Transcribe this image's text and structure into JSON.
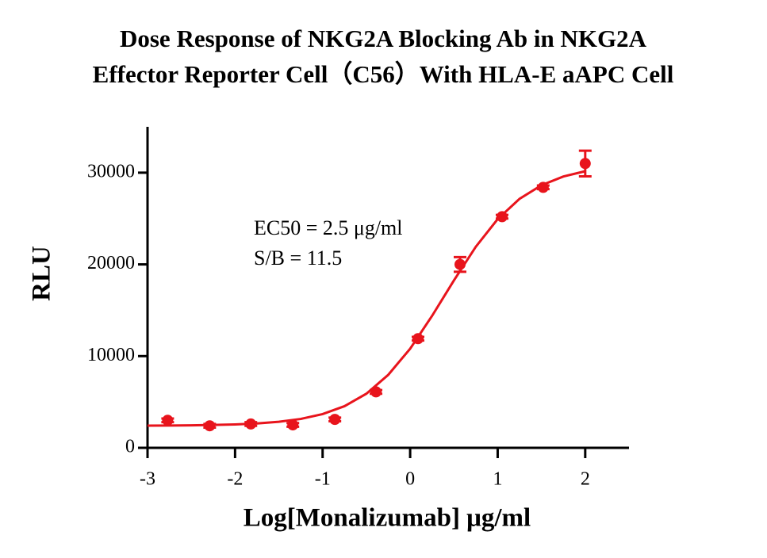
{
  "chart_data": {
    "type": "scatter",
    "title": [
      "Dose Response of NKG2A Blocking Ab in NKG2A",
      "Effector Reporter Cell（C56）With HLA-E aAPC Cell"
    ],
    "x_label": "Log[Monalizumab] μg/ml",
    "y_label": "RLU",
    "annotations": [
      "EC50 = 2.5 μg/ml",
      "S/B = 11.5"
    ],
    "xlim": [
      -3,
      2.5
    ],
    "ylim": [
      0,
      35000
    ],
    "xticks": [
      -3,
      -2,
      -1,
      0,
      1,
      2
    ],
    "yticks": [
      0,
      10000,
      20000,
      30000
    ],
    "grid": false,
    "series": [
      {
        "type": "scatter",
        "color": "#e8141c",
        "x": [
          -2.77,
          -2.29,
          -1.82,
          -1.34,
          -0.86,
          -0.39,
          0.09,
          0.57,
          1.05,
          1.52,
          2.0
        ],
        "values": [
          3000,
          2400,
          2600,
          2500,
          3100,
          6100,
          11900,
          20000,
          25200,
          28400,
          31000
        ],
        "errors": [
          200,
          200,
          200,
          200,
          200,
          200,
          200,
          800,
          200,
          200,
          1400
        ]
      },
      {
        "type": "line",
        "color": "#e8141c",
        "x": [
          -3,
          -2.75,
          -2.5,
          -2.25,
          -2,
          -1.75,
          -1.5,
          -1.25,
          -1,
          -0.75,
          -0.5,
          -0.25,
          0,
          0.25,
          0.5,
          0.75,
          1,
          1.25,
          1.5,
          1.75,
          2
        ],
        "values": [
          2420,
          2430,
          2450,
          2490,
          2550,
          2660,
          2840,
          3150,
          3680,
          4540,
          5900,
          7960,
          10810,
          14380,
          18250,
          21920,
          24940,
          27150,
          28630,
          29580,
          30160
        ]
      }
    ]
  }
}
